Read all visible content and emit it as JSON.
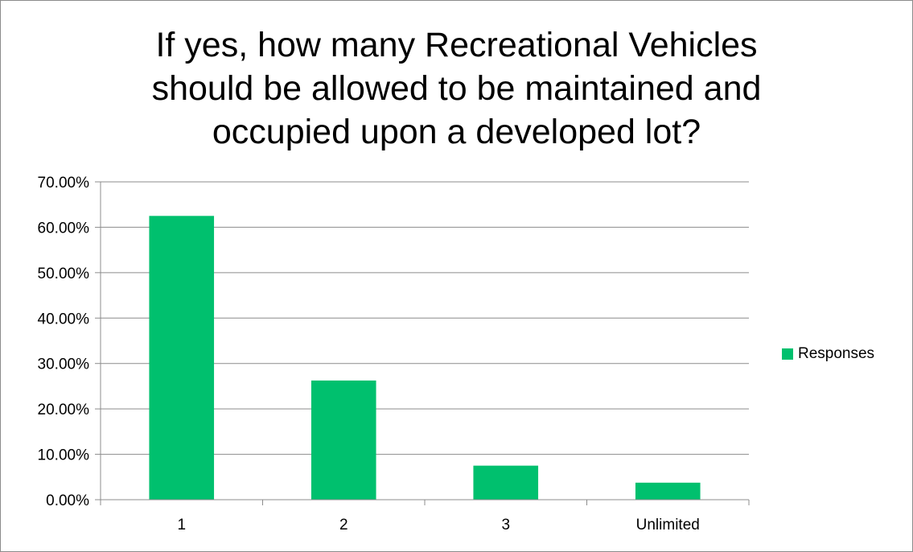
{
  "chart_data": {
    "type": "bar",
    "title_lines": [
      "If yes, how many Recreational Vehicles",
      "should be allowed to be maintained and",
      "occupied upon a developed lot?"
    ],
    "categories": [
      "1",
      "2",
      "3",
      "Unlimited"
    ],
    "series": [
      {
        "name": "Responses",
        "values": [
          0.625,
          0.2625,
          0.075,
          0.0375
        ]
      }
    ],
    "ylim": [
      0,
      0.7
    ],
    "y_ticks": [
      0,
      0.1,
      0.2,
      0.3,
      0.4,
      0.5,
      0.6,
      0.7
    ],
    "y_tick_labels": [
      "0.00%",
      "10.00%",
      "20.00%",
      "30.00%",
      "40.00%",
      "50.00%",
      "60.00%",
      "70.00%"
    ],
    "grid": true,
    "legend_position": "right",
    "bar_color": "#00c06e",
    "grid_color": "#8c8c8c"
  }
}
